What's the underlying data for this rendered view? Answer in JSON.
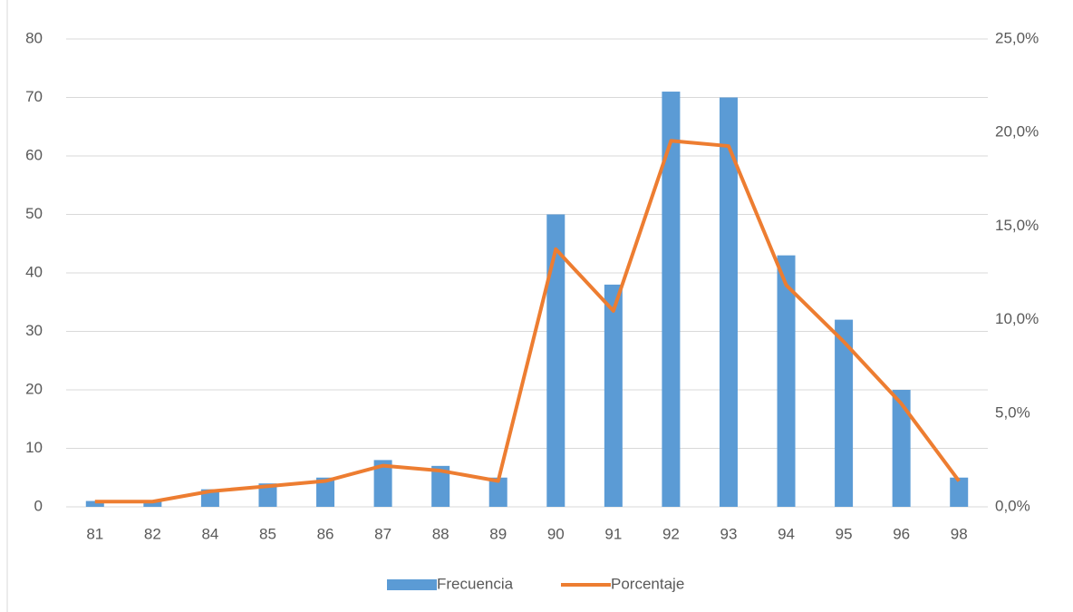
{
  "chart_data": {
    "type": "bar-line",
    "categories": [
      "81",
      "82",
      "84",
      "85",
      "86",
      "87",
      "88",
      "89",
      "90",
      "91",
      "92",
      "93",
      "94",
      "95",
      "96",
      "98"
    ],
    "series": [
      {
        "name": "Frecuencia",
        "type": "bar",
        "color": "#5b9bd5",
        "values": [
          1,
          1,
          3,
          4,
          5,
          8,
          7,
          5,
          50,
          38,
          71,
          70,
          43,
          32,
          20,
          5
        ]
      },
      {
        "name": "Porcentaje",
        "type": "line",
        "axis": "y2",
        "color": "#ed7d31",
        "values": [
          0.28,
          0.28,
          0.83,
          1.1,
          1.38,
          2.2,
          1.93,
          1.38,
          13.77,
          10.47,
          19.56,
          19.28,
          11.85,
          8.82,
          5.51,
          1.38
        ]
      }
    ],
    "ylim": [
      0,
      80
    ],
    "yticks": [
      0,
      10,
      20,
      30,
      40,
      50,
      60,
      70,
      80
    ],
    "y2lim": [
      0,
      25
    ],
    "y2ticks": [
      {
        "value": 0,
        "label": "0,0%"
      },
      {
        "value": 5,
        "label": "5,0%"
      },
      {
        "value": 10,
        "label": "10,0%"
      },
      {
        "value": 15,
        "label": "15,0%"
      },
      {
        "value": 20,
        "label": "20,0%"
      },
      {
        "value": 25,
        "label": "25,0%"
      }
    ],
    "grid": true,
    "legend": "bottom"
  }
}
